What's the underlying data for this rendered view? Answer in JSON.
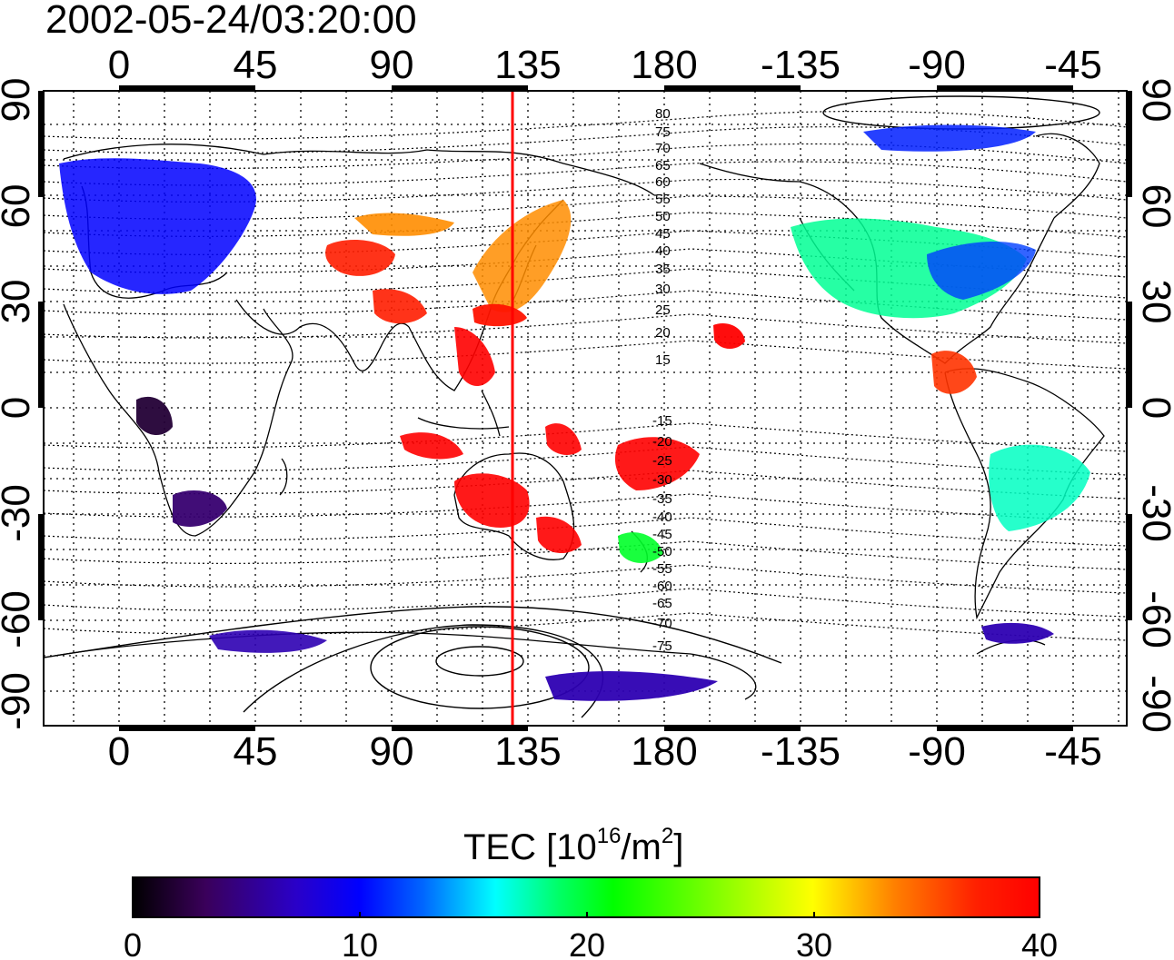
{
  "timestamp": "2002-05-24/03:20:00",
  "map": {
    "top_ticks": [
      "0",
      "45",
      "90",
      "135",
      "180",
      "-135",
      "-90",
      "-45"
    ],
    "bottom_ticks": [
      "0",
      "45",
      "90",
      "135",
      "180",
      "-135",
      "-90",
      "-45"
    ],
    "left_ticks": [
      "90",
      "60",
      "30",
      "0",
      "-30",
      "-60",
      "-90"
    ],
    "right_ticks": [
      "90",
      "60",
      "30",
      "0",
      "-30",
      "-60",
      "-90"
    ],
    "meridian_line": {
      "longitude": 130,
      "color": "#ff0000"
    },
    "contour_labels_north": [
      "80",
      "75",
      "70",
      "65",
      "60",
      "55",
      "50",
      "45",
      "40",
      "35",
      "30",
      "25",
      "20",
      "15"
    ],
    "contour_labels_south": [
      "-15",
      "-20",
      "-25",
      "-30",
      "-35",
      "-40",
      "-45",
      "-50",
      "-55",
      "-60",
      "-65",
      "-70",
      "-75"
    ],
    "region_levels": {
      "europe": 10,
      "central_asia": 37,
      "east_asia_front": 33,
      "japan_south": 38,
      "southeast_asia": 40,
      "australia": 40,
      "new_zealand": 22,
      "pacific_south": 40,
      "hawaii": 40,
      "north_america": 19,
      "north_america_east": 12,
      "central_america": 36,
      "south_america": 18,
      "africa_north": 2,
      "africa_south": 4,
      "antarctic": 6,
      "arctic": 11
    }
  },
  "colorbar": {
    "title": "TEC  [10",
    "title_exp": "16",
    "title_unit": "/m",
    "title_unit_exp": "2",
    "title_close": "]",
    "ticks": [
      "0",
      "10",
      "20",
      "30",
      "40"
    ],
    "min": 0,
    "max": 40,
    "colors": [
      "#000000",
      "#3a005a",
      "#2a00c8",
      "#0000ff",
      "#0066ff",
      "#00ffff",
      "#00ff66",
      "#00ff00",
      "#66ff00",
      "#ffff00",
      "#ff8000",
      "#ff2000",
      "#ff0000"
    ]
  }
}
